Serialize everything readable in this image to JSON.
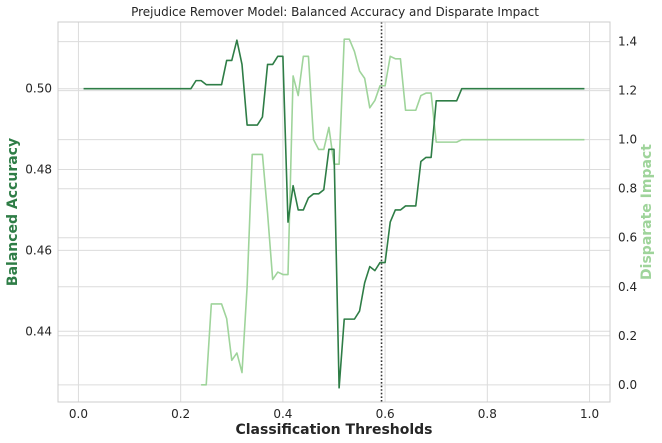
{
  "chart_data": {
    "type": "line",
    "title": "Prejudice Remover Model: Balanced Accuracy and Disparate Impact",
    "xlabel": "Classification Thresholds",
    "ylabel_left": "Balanced Accuracy",
    "ylabel_right": "Disparate Impact",
    "xlim": [
      -0.04,
      1.04
    ],
    "ylim_left": [
      0.4225,
      0.5165
    ],
    "ylim_right": [
      -0.07,
      1.48
    ],
    "x_ticks": [
      0.0,
      0.2,
      0.4,
      0.6,
      0.8,
      1.0
    ],
    "x_tick_labels": [
      "0.0",
      "0.2",
      "0.4",
      "0.6",
      "0.8",
      "1.0"
    ],
    "y_left_ticks": [
      0.44,
      0.46,
      0.48,
      0.5
    ],
    "y_left_tick_labels": [
      "0.44",
      "0.46",
      "0.48",
      "0.50"
    ],
    "y_right_ticks": [
      0.0,
      0.2,
      0.4,
      0.6,
      0.8,
      1.0,
      1.2,
      1.4
    ],
    "y_right_tick_labels": [
      "0.0",
      "0.2",
      "0.4",
      "0.6",
      "0.8",
      "1.0",
      "1.2",
      "1.4"
    ],
    "vline": {
      "x": 0.593,
      "style": "dotted",
      "color": "#333333"
    },
    "colors": {
      "balanced_accuracy": "#2e7d46",
      "disparate_impact": "#9fd49b"
    },
    "series": [
      {
        "name": "Balanced Accuracy",
        "axis": "left",
        "points": [
          [
            0.01,
            0.5
          ],
          [
            0.22,
            0.5
          ],
          [
            0.23,
            0.502
          ],
          [
            0.24,
            0.502
          ],
          [
            0.25,
            0.501
          ],
          [
            0.27,
            0.501
          ],
          [
            0.28,
            0.501
          ],
          [
            0.29,
            0.507
          ],
          [
            0.3,
            0.507
          ],
          [
            0.31,
            0.512
          ],
          [
            0.32,
            0.506
          ],
          [
            0.33,
            0.491
          ],
          [
            0.34,
            0.491
          ],
          [
            0.35,
            0.491
          ],
          [
            0.36,
            0.493
          ],
          [
            0.37,
            0.506
          ],
          [
            0.38,
            0.506
          ],
          [
            0.39,
            0.508
          ],
          [
            0.4,
            0.508
          ],
          [
            0.41,
            0.467
          ],
          [
            0.42,
            0.476
          ],
          [
            0.43,
            0.47
          ],
          [
            0.44,
            0.47
          ],
          [
            0.45,
            0.473
          ],
          [
            0.46,
            0.474
          ],
          [
            0.47,
            0.474
          ],
          [
            0.48,
            0.475
          ],
          [
            0.49,
            0.485
          ],
          [
            0.5,
            0.485
          ],
          [
            0.51,
            0.426
          ],
          [
            0.52,
            0.443
          ],
          [
            0.53,
            0.443
          ],
          [
            0.54,
            0.443
          ],
          [
            0.55,
            0.445
          ],
          [
            0.56,
            0.452
          ],
          [
            0.57,
            0.456
          ],
          [
            0.58,
            0.455
          ],
          [
            0.59,
            0.457
          ],
          [
            0.6,
            0.457
          ],
          [
            0.61,
            0.467
          ],
          [
            0.62,
            0.47
          ],
          [
            0.63,
            0.47
          ],
          [
            0.64,
            0.471
          ],
          [
            0.65,
            0.471
          ],
          [
            0.66,
            0.471
          ],
          [
            0.67,
            0.482
          ],
          [
            0.68,
            0.483
          ],
          [
            0.69,
            0.483
          ],
          [
            0.7,
            0.497
          ],
          [
            0.71,
            0.497
          ],
          [
            0.72,
            0.497
          ],
          [
            0.73,
            0.497
          ],
          [
            0.74,
            0.497
          ],
          [
            0.75,
            0.5
          ],
          [
            0.99,
            0.5
          ]
        ]
      },
      {
        "name": "Disparate Impact",
        "axis": "right",
        "points": [
          [
            0.24,
            0.0
          ],
          [
            0.25,
            0.0
          ],
          [
            0.26,
            0.33
          ],
          [
            0.27,
            0.33
          ],
          [
            0.28,
            0.33
          ],
          [
            0.29,
            0.27
          ],
          [
            0.3,
            0.1
          ],
          [
            0.31,
            0.13
          ],
          [
            0.32,
            0.05
          ],
          [
            0.33,
            0.4
          ],
          [
            0.34,
            0.94
          ],
          [
            0.35,
            0.94
          ],
          [
            0.36,
            0.94
          ],
          [
            0.37,
            0.7
          ],
          [
            0.38,
            0.43
          ],
          [
            0.39,
            0.46
          ],
          [
            0.4,
            0.45
          ],
          [
            0.41,
            0.45
          ],
          [
            0.42,
            1.26
          ],
          [
            0.43,
            1.18
          ],
          [
            0.44,
            1.34
          ],
          [
            0.45,
            1.34
          ],
          [
            0.46,
            1.0
          ],
          [
            0.47,
            0.96
          ],
          [
            0.48,
            0.96
          ],
          [
            0.49,
            1.05
          ],
          [
            0.5,
            0.9
          ],
          [
            0.51,
            0.9
          ],
          [
            0.52,
            1.41
          ],
          [
            0.53,
            1.41
          ],
          [
            0.54,
            1.36
          ],
          [
            0.55,
            1.28
          ],
          [
            0.56,
            1.25
          ],
          [
            0.57,
            1.13
          ],
          [
            0.58,
            1.16
          ],
          [
            0.59,
            1.22
          ],
          [
            0.6,
            1.22
          ],
          [
            0.61,
            1.34
          ],
          [
            0.62,
            1.33
          ],
          [
            0.63,
            1.33
          ],
          [
            0.64,
            1.12
          ],
          [
            0.65,
            1.12
          ],
          [
            0.66,
            1.12
          ],
          [
            0.67,
            1.18
          ],
          [
            0.68,
            1.19
          ],
          [
            0.69,
            1.19
          ],
          [
            0.7,
            0.99
          ],
          [
            0.71,
            0.99
          ],
          [
            0.72,
            0.99
          ],
          [
            0.73,
            0.99
          ],
          [
            0.74,
            0.99
          ],
          [
            0.75,
            1.0
          ],
          [
            0.99,
            1.0
          ]
        ]
      }
    ]
  }
}
